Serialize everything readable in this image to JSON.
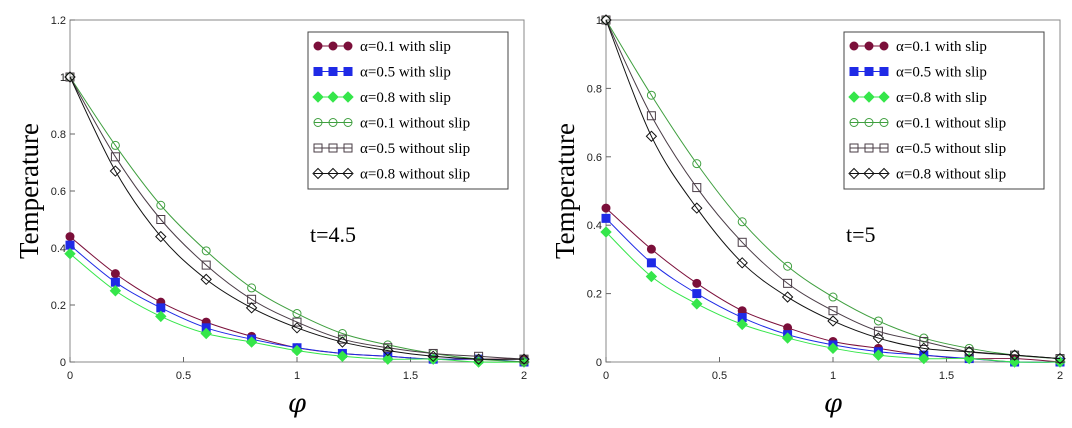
{
  "colors": {
    "maroon": "#7b0f3a",
    "blue": "#1f2ae6",
    "green": "#35e64a",
    "olive": "#3f9f3f",
    "dark": "#4a3c46",
    "black": "#111111"
  },
  "chart_data": [
    {
      "type": "line",
      "title": "",
      "annotation": "t=4.5",
      "xlabel": "φ",
      "ylabel": "Temperature",
      "xlim": [
        0,
        2
      ],
      "ylim": [
        0,
        1.2
      ],
      "x_ticks": [
        "0",
        "0.5",
        "1",
        "1.5",
        "2"
      ],
      "y_ticks": [
        "0",
        "0.2",
        "0.4",
        "0.6",
        "0.8",
        "1",
        "1.2"
      ],
      "x": [
        0,
        0.2,
        0.4,
        0.6,
        0.8,
        1.0,
        1.2,
        1.4,
        1.6,
        1.8,
        2.0
      ],
      "series": [
        {
          "name": "α=0.1 with slip",
          "marker": "filled-circle",
          "color": "maroon",
          "values": [
            0.44,
            0.31,
            0.21,
            0.14,
            0.09,
            0.05,
            0.03,
            0.02,
            0.01,
            0.01,
            0.01
          ]
        },
        {
          "name": "α=0.5 with slip",
          "marker": "filled-square",
          "color": "blue",
          "values": [
            0.41,
            0.28,
            0.19,
            0.12,
            0.08,
            0.05,
            0.03,
            0.02,
            0.01,
            0.01,
            0.0
          ]
        },
        {
          "name": "α=0.8 with slip",
          "marker": "filled-diamond",
          "color": "green",
          "values": [
            0.38,
            0.25,
            0.16,
            0.1,
            0.07,
            0.04,
            0.02,
            0.01,
            0.01,
            0.0,
            0.0
          ]
        },
        {
          "name": "α=0.1 without slip",
          "marker": "open-circle",
          "color": "olive",
          "values": [
            1.0,
            0.76,
            0.55,
            0.39,
            0.26,
            0.17,
            0.1,
            0.06,
            0.03,
            0.01,
            0.0
          ]
        },
        {
          "name": "α=0.5 without slip",
          "marker": "open-square",
          "color": "dark",
          "values": [
            1.0,
            0.72,
            0.5,
            0.34,
            0.22,
            0.14,
            0.08,
            0.05,
            0.03,
            0.02,
            0.01
          ]
        },
        {
          "name": "α=0.8 without slip",
          "marker": "open-diamond",
          "color": "black",
          "values": [
            1.0,
            0.67,
            0.44,
            0.29,
            0.19,
            0.12,
            0.07,
            0.04,
            0.02,
            0.01,
            0.01
          ]
        }
      ],
      "legend_position": "top-right"
    },
    {
      "type": "line",
      "title": "",
      "annotation": "t=5",
      "xlabel": "φ",
      "ylabel": "Temperature",
      "xlim": [
        0,
        2
      ],
      "ylim": [
        0,
        1
      ],
      "x_ticks": [
        "0",
        "0.5",
        "1",
        "1.5",
        "2"
      ],
      "y_ticks": [
        "0",
        "0.2",
        "0.4",
        "0.6",
        "0.8",
        "1"
      ],
      "x": [
        0,
        0.2,
        0.4,
        0.6,
        0.8,
        1.0,
        1.2,
        1.4,
        1.6,
        1.8,
        2.0
      ],
      "series": [
        {
          "name": "α=0.1 with slip",
          "marker": "filled-circle",
          "color": "maroon",
          "values": [
            0.45,
            0.33,
            0.23,
            0.15,
            0.1,
            0.06,
            0.04,
            0.02,
            0.01,
            0.01,
            0.0
          ]
        },
        {
          "name": "α=0.5 with slip",
          "marker": "filled-square",
          "color": "blue",
          "values": [
            0.42,
            0.29,
            0.2,
            0.13,
            0.08,
            0.05,
            0.03,
            0.02,
            0.01,
            0.0,
            0.0
          ]
        },
        {
          "name": "α=0.8 with slip",
          "marker": "filled-diamond",
          "color": "green",
          "values": [
            0.38,
            0.25,
            0.17,
            0.11,
            0.07,
            0.04,
            0.02,
            0.01,
            0.01,
            0.0,
            0.0
          ]
        },
        {
          "name": "α=0.1 without slip",
          "marker": "open-circle",
          "color": "olive",
          "values": [
            1.0,
            0.78,
            0.58,
            0.41,
            0.28,
            0.19,
            0.12,
            0.07,
            0.04,
            0.02,
            0.01
          ]
        },
        {
          "name": "α=0.5 without slip",
          "marker": "open-square",
          "color": "dark",
          "values": [
            1.0,
            0.72,
            0.51,
            0.35,
            0.23,
            0.15,
            0.09,
            0.06,
            0.03,
            0.02,
            0.01
          ]
        },
        {
          "name": "α=0.8 without slip",
          "marker": "open-diamond",
          "color": "black",
          "values": [
            1.0,
            0.66,
            0.45,
            0.29,
            0.19,
            0.12,
            0.07,
            0.04,
            0.03,
            0.02,
            0.01
          ]
        }
      ],
      "legend_position": "top-right"
    }
  ]
}
